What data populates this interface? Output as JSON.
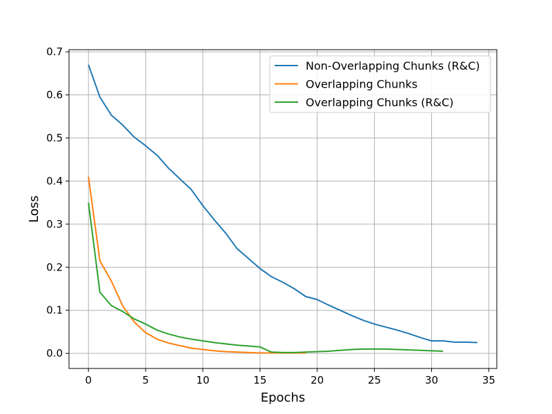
{
  "chart_data": {
    "type": "line",
    "title": "",
    "xlabel": "Epochs",
    "ylabel": "Loss",
    "xlim": [
      -1.7,
      35.7
    ],
    "ylim": [
      -0.035,
      0.705
    ],
    "xticks": [
      0,
      5,
      10,
      15,
      20,
      25,
      30,
      35
    ],
    "yticks": [
      0.0,
      0.1,
      0.2,
      0.3,
      0.4,
      0.5,
      0.6,
      0.7
    ],
    "xtick_labels": [
      "0",
      "5",
      "10",
      "15",
      "20",
      "25",
      "30",
      "35"
    ],
    "ytick_labels": [
      "0.0",
      "0.1",
      "0.2",
      "0.3",
      "0.4",
      "0.5",
      "0.6",
      "0.7"
    ],
    "grid": true,
    "legend_position": "top-right",
    "series": [
      {
        "name": "Non-Overlapping Chunks (R&C)",
        "color": "#1f77b4",
        "x": [
          0,
          1,
          2,
          3,
          4,
          5,
          6,
          7,
          8,
          9,
          10,
          11,
          12,
          13,
          14,
          15,
          16,
          17,
          18,
          19,
          20,
          21,
          22,
          23,
          24,
          25,
          26,
          27,
          28,
          29,
          30,
          31,
          32,
          33,
          34
        ],
        "values": [
          0.67,
          0.595,
          0.553,
          0.53,
          0.502,
          0.482,
          0.46,
          0.43,
          0.405,
          0.38,
          0.343,
          0.31,
          0.279,
          0.243,
          0.22,
          0.197,
          0.178,
          0.165,
          0.15,
          0.132,
          0.125,
          0.112,
          0.1,
          0.088,
          0.077,
          0.068,
          0.061,
          0.054,
          0.046,
          0.037,
          0.029,
          0.029,
          0.026,
          0.026,
          0.025
        ]
      },
      {
        "name": "Overlapping Chunks",
        "color": "#ff7f0e",
        "x": [
          0,
          1,
          2,
          3,
          4,
          5,
          6,
          7,
          8,
          9,
          10,
          11,
          12,
          13,
          14,
          15,
          16,
          17,
          18,
          19
        ],
        "values": [
          0.41,
          0.215,
          0.168,
          0.11,
          0.073,
          0.048,
          0.033,
          0.024,
          0.018,
          0.012,
          0.009,
          0.006,
          0.004,
          0.003,
          0.002,
          0.001,
          0.001,
          0.001,
          0.001,
          0.001
        ]
      },
      {
        "name": "Overlapping Chunks (R&C)",
        "color": "#2ca02c",
        "x": [
          0,
          1,
          2,
          3,
          4,
          5,
          6,
          7,
          8,
          9,
          10,
          11,
          12,
          13,
          14,
          15,
          16,
          17,
          18,
          19,
          20,
          21,
          22,
          23,
          24,
          25,
          26,
          27,
          28,
          29,
          30,
          31
        ],
        "values": [
          0.35,
          0.142,
          0.111,
          0.097,
          0.08,
          0.068,
          0.054,
          0.045,
          0.038,
          0.033,
          0.029,
          0.025,
          0.022,
          0.019,
          0.017,
          0.015,
          0.003,
          0.002,
          0.002,
          0.003,
          0.004,
          0.005,
          0.007,
          0.009,
          0.01,
          0.01,
          0.01,
          0.009,
          0.008,
          0.007,
          0.006,
          0.005
        ]
      }
    ]
  }
}
